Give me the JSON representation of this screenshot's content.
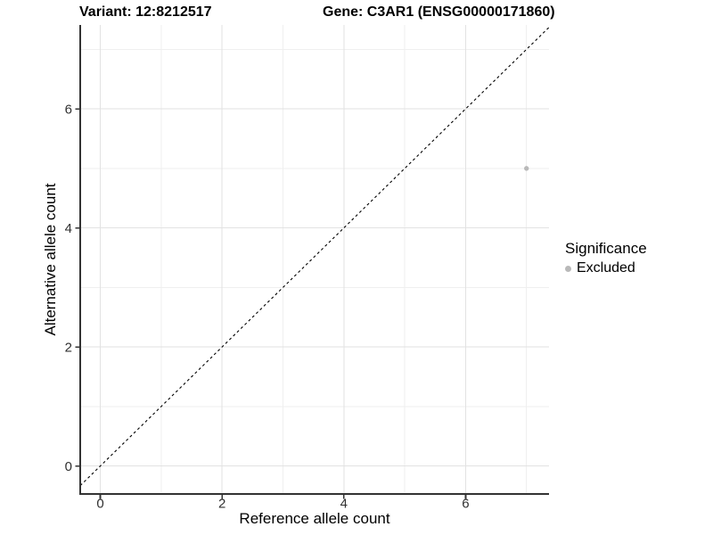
{
  "header": {
    "title_left": "Variant: 12:8212517",
    "title_right": "Gene: C3AR1 (ENSG00000171860)"
  },
  "legend": {
    "title": "Significance",
    "items": [
      {
        "label": "Excluded",
        "color": "#b9b9b9"
      }
    ]
  },
  "colors": {
    "axis_line": "#333333",
    "tick_label": "#303030",
    "grid_major": "#e2e2e2",
    "grid_minor": "#efefef",
    "diagonal": "#000000",
    "point": "#b9b9b9"
  },
  "chart_data": {
    "type": "scatter",
    "title": "Variant: 12:8212517    Gene: C3AR1 (ENSG00000171860)",
    "xlabel": "Reference allele count",
    "ylabel": "Alternative allele count",
    "xlim": [
      -0.33,
      7.37
    ],
    "ylim": [
      -0.47,
      7.41
    ],
    "x_ticks": [
      0,
      2,
      4,
      6
    ],
    "y_ticks": [
      0,
      2,
      4,
      6
    ],
    "x_minor_grid": [
      1,
      3,
      5,
      7
    ],
    "y_minor_grid": [
      1,
      3,
      5,
      7
    ],
    "grid": true,
    "legend_position": "right",
    "diagonal": {
      "style": "dashed",
      "slope": 1,
      "intercept": 0
    },
    "series": [
      {
        "name": "Excluded",
        "color": "#b9b9b9",
        "points": [
          {
            "x": 7,
            "y": 5
          }
        ]
      }
    ]
  }
}
